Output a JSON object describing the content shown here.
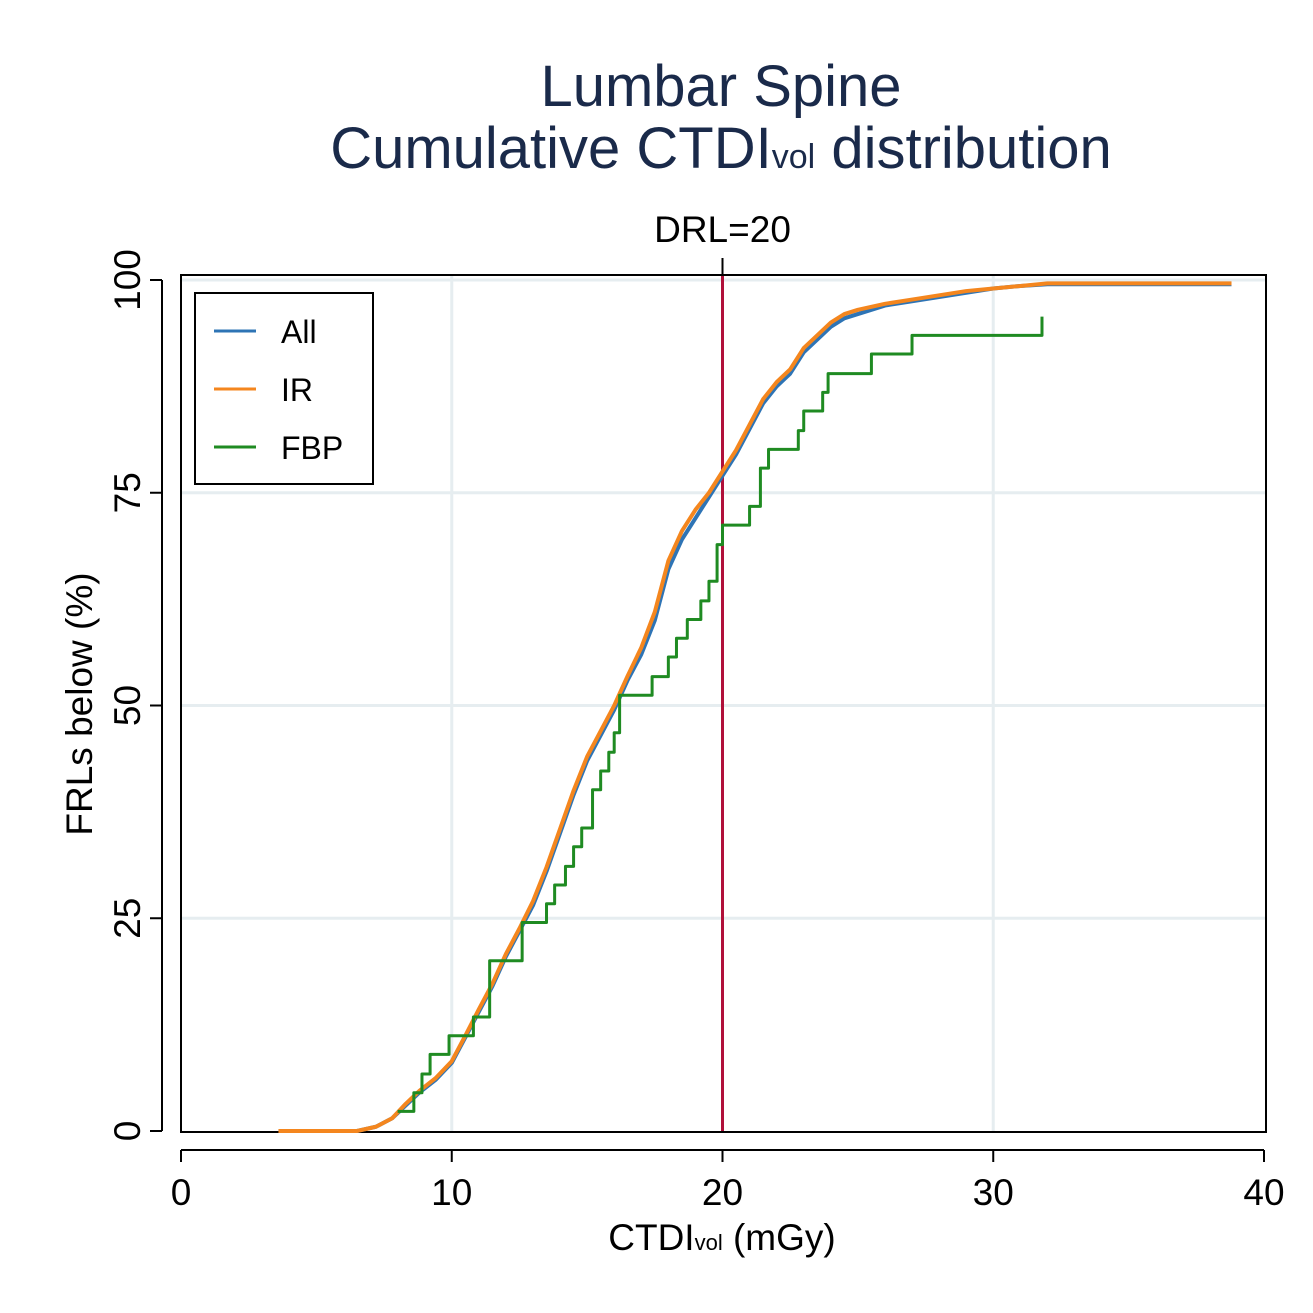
{
  "chart_data": {
    "type": "line",
    "title": "Lumbar Spine",
    "subtitle_prefix": "Cumulative CTDI",
    "subtitle_sub": "vol",
    "subtitle_suffix": " distribution",
    "xlabel_prefix": "CTDI",
    "xlabel_sub": "vol",
    "xlabel_suffix": " (mGy)",
    "ylabel": "FRLs below (%)",
    "xlim": [
      0,
      40
    ],
    "ylim": [
      0,
      100
    ],
    "x_ticks": [
      0,
      10,
      20,
      30,
      40
    ],
    "y_ticks": [
      0,
      25,
      50,
      75,
      100
    ],
    "grid": true,
    "legend_position": "top-left",
    "reference_line": {
      "x": 20,
      "label": "DRL=20",
      "color": "#b0103a"
    },
    "series": [
      {
        "name": "All",
        "color": "#2e74b5",
        "x": [
          3.6,
          6.5,
          7.2,
          7.8,
          8.3,
          8.8,
          9.4,
          10.0,
          10.5,
          11.0,
          11.5,
          12.0,
          12.5,
          13.0,
          13.5,
          14.0,
          14.5,
          15.0,
          15.5,
          16.0,
          16.5,
          17.0,
          17.5,
          18.0,
          18.5,
          19.0,
          19.5,
          20.0,
          20.5,
          21.0,
          21.5,
          22.0,
          22.5,
          23.0,
          23.5,
          24.0,
          24.5,
          25.0,
          26.0,
          27.0,
          28.0,
          29.0,
          30.0,
          31.0,
          32.0,
          35.0,
          38.8
        ],
        "y": [
          0,
          0,
          0.5,
          1.5,
          3.0,
          4.5,
          6.0,
          8.0,
          11.0,
          14.0,
          17.0,
          20.5,
          23.5,
          26.5,
          30.5,
          35.0,
          39.5,
          43.5,
          46.5,
          49.5,
          53.0,
          56.0,
          60.0,
          66.0,
          69.5,
          72.0,
          74.5,
          77.0,
          79.5,
          82.5,
          85.5,
          87.5,
          89.0,
          91.5,
          93.0,
          94.5,
          95.5,
          96.0,
          97.0,
          97.5,
          98.0,
          98.5,
          99.0,
          99.3,
          99.5,
          99.5,
          99.5
        ]
      },
      {
        "name": "IR",
        "color": "#f4861e",
        "x": [
          3.6,
          6.5,
          7.2,
          7.8,
          8.3,
          8.8,
          9.4,
          10.0,
          10.5,
          11.0,
          11.5,
          12.0,
          12.5,
          13.0,
          13.5,
          14.0,
          14.5,
          15.0,
          15.5,
          16.0,
          16.5,
          17.0,
          17.5,
          18.0,
          18.5,
          19.0,
          19.5,
          20.0,
          20.5,
          21.0,
          21.5,
          22.0,
          22.5,
          23.0,
          23.5,
          24.0,
          24.5,
          25.0,
          26.0,
          27.0,
          28.0,
          29.0,
          30.0,
          31.0,
          32.0,
          35.0,
          38.8
        ],
        "y": [
          0,
          0,
          0.5,
          1.5,
          3.2,
          4.7,
          6.2,
          8.2,
          11.2,
          14.3,
          17.3,
          20.8,
          23.8,
          27.0,
          31.0,
          35.5,
          40.0,
          44.0,
          47.0,
          50.0,
          53.5,
          56.8,
          61.0,
          67.0,
          70.5,
          73.0,
          75.0,
          77.5,
          80.0,
          83.0,
          86.0,
          88.0,
          89.5,
          92.0,
          93.5,
          95.0,
          96.0,
          96.5,
          97.2,
          97.7,
          98.2,
          98.7,
          99.0,
          99.3,
          99.6,
          99.6,
          99.6
        ]
      },
      {
        "name": "FBP",
        "color": "#1f8b22",
        "x": [
          8.0,
          8.6,
          8.9,
          9.2,
          9.9,
          10.8,
          11.4,
          12.6,
          13.5,
          13.8,
          14.2,
          14.5,
          14.8,
          15.2,
          15.5,
          15.8,
          16.0,
          16.2,
          17.4,
          18.0,
          18.3,
          18.7,
          19.2,
          19.5,
          19.8,
          20.0,
          20.2,
          21.0,
          21.4,
          21.7,
          22.8,
          23.0,
          23.7,
          23.9,
          24.2,
          25.5,
          27.0,
          31.8
        ],
        "y": [
          2.3,
          4.5,
          6.7,
          9.0,
          11.2,
          13.4,
          20.0,
          24.5,
          26.7,
          28.9,
          31.1,
          33.4,
          35.6,
          40.1,
          42.3,
          44.5,
          46.8,
          51.2,
          53.4,
          55.7,
          57.9,
          60.1,
          62.3,
          64.6,
          68.9,
          71.2,
          71.2,
          73.4,
          77.9,
          80.1,
          82.3,
          84.6,
          86.8,
          89.0,
          89.0,
          91.3,
          93.5,
          95.7
        ]
      }
    ]
  }
}
